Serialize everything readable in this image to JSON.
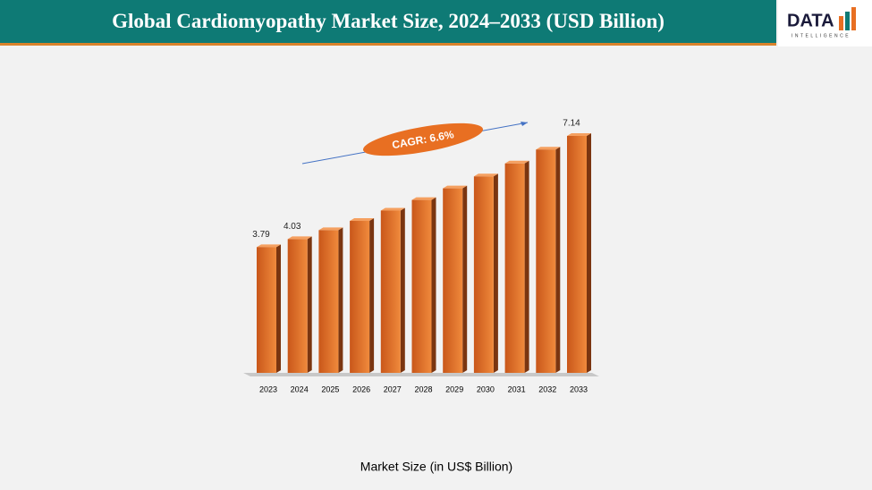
{
  "header": {
    "title": "Global Cardiomyopathy Market Size, 2024–2033 (USD Billion)",
    "logo": "DATA",
    "logo_sub": "INTELLIGENCE"
  },
  "chart_data": {
    "type": "bar3d",
    "categories": [
      "2023",
      "2024",
      "2025",
      "2026",
      "2027",
      "2028",
      "2029",
      "2030",
      "2031",
      "2032",
      "2033"
    ],
    "values": [
      3.79,
      4.03,
      4.3,
      4.58,
      4.89,
      5.21,
      5.56,
      5.92,
      6.31,
      6.73,
      7.14
    ],
    "value_labels": [
      "3.79",
      "4.03",
      null,
      null,
      null,
      null,
      null,
      null,
      null,
      null,
      "7.14"
    ],
    "color": "#e86f22",
    "annotation": "CAGR: 6.6%",
    "xlabel": "Market Size (in US$ Billion)"
  }
}
